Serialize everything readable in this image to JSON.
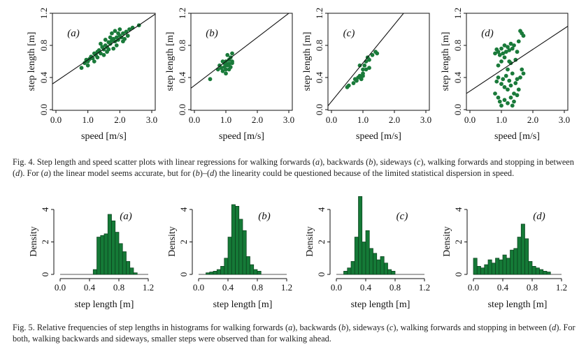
{
  "fig4": {
    "xlabel": "speed [m/s]",
    "ylabel": "step length [m]",
    "xticks": [
      "0.0",
      "1.0",
      "2.0",
      "3.0"
    ],
    "yticks": [
      "0.0",
      "0.4",
      "0.8",
      "1.2"
    ],
    "caption": "Fig. 4.  Step length and speed scatter plots with linear regressions for walking forwards (a), backwards (b), sideways (c), walking forwards and stopping in between (d). For (a) the linear model seems accurate, but for (b)–(d) the linearity could be questioned because of the limited statistical dispersion in speed."
  },
  "fig5": {
    "xlabel": "step length [m]",
    "ylabel": "Density",
    "xticks": [
      "0.0",
      "0.4",
      "0.8",
      "1.2"
    ],
    "yticks": [
      "0",
      "2",
      "4"
    ],
    "caption": "Fig. 5. Relative frequencies of step lengths in histograms for walking forwards (a), backwards (b), sideways (c), walking forwards and stopping in between (d). For both, walking backwards and sideways, smaller steps were observed than for walking ahead."
  },
  "colors": {
    "points": "#1a7a3a",
    "bars": "#157a37",
    "line": "#111111"
  },
  "chart_data": [
    {
      "type": "scatter",
      "panel": "(a)",
      "xlim": [
        0,
        3.0
      ],
      "ylim": [
        0,
        1.2
      ],
      "regression": {
        "intercept": 0.35,
        "slope": 0.27
      },
      "points": [
        [
          0.8,
          0.52
        ],
        [
          0.9,
          0.58
        ],
        [
          0.95,
          0.62
        ],
        [
          1.0,
          0.6
        ],
        [
          1.05,
          0.63
        ],
        [
          1.1,
          0.66
        ],
        [
          1.15,
          0.64
        ],
        [
          1.2,
          0.7
        ],
        [
          1.25,
          0.68
        ],
        [
          1.3,
          0.72
        ],
        [
          1.35,
          0.74
        ],
        [
          1.4,
          0.7
        ],
        [
          1.45,
          0.78
        ],
        [
          1.5,
          0.75
        ],
        [
          1.55,
          0.8
        ],
        [
          1.6,
          0.78
        ],
        [
          1.65,
          0.84
        ],
        [
          1.7,
          0.82
        ],
        [
          1.75,
          0.86
        ],
        [
          1.8,
          0.88
        ],
        [
          1.85,
          0.85
        ],
        [
          1.9,
          0.9
        ],
        [
          1.95,
          0.87
        ],
        [
          2.0,
          0.92
        ],
        [
          2.05,
          0.9
        ],
        [
          2.1,
          0.95
        ],
        [
          2.2,
          0.97
        ],
        [
          2.3,
          1.0
        ],
        [
          2.4,
          1.02
        ],
        [
          2.6,
          1.05
        ],
        [
          1.6,
          0.72
        ],
        [
          1.7,
          0.9
        ],
        [
          1.8,
          0.76
        ],
        [
          1.9,
          0.8
        ],
        [
          2.0,
          1.0
        ],
        [
          2.1,
          0.85
        ],
        [
          1.4,
          0.82
        ],
        [
          1.5,
          0.68
        ],
        [
          1.2,
          0.6
        ],
        [
          1.0,
          0.55
        ],
        [
          1.75,
          0.95
        ],
        [
          1.85,
          0.98
        ],
        [
          2.15,
          0.88
        ],
        [
          1.95,
          0.95
        ],
        [
          1.65,
          0.75
        ],
        [
          1.3,
          0.65
        ],
        [
          1.55,
          0.87
        ],
        [
          2.25,
          0.92
        ]
      ]
    },
    {
      "type": "scatter",
      "panel": "(b)",
      "xlim": [
        0,
        3.0
      ],
      "ylim": [
        0,
        1.2
      ],
      "regression": {
        "intercept": 0.3,
        "slope": 0.3
      },
      "points": [
        [
          0.5,
          0.38
        ],
        [
          0.75,
          0.5
        ],
        [
          0.8,
          0.55
        ],
        [
          0.85,
          0.52
        ],
        [
          0.9,
          0.48
        ],
        [
          0.95,
          0.58
        ],
        [
          1.0,
          0.6
        ],
        [
          1.0,
          0.5
        ],
        [
          1.05,
          0.55
        ],
        [
          1.1,
          0.62
        ],
        [
          1.1,
          0.57
        ],
        [
          1.15,
          0.65
        ],
        [
          1.15,
          0.53
        ],
        [
          1.2,
          0.6
        ],
        [
          1.2,
          0.7
        ],
        [
          1.0,
          0.45
        ],
        [
          0.9,
          0.6
        ],
        [
          1.05,
          0.68
        ],
        [
          1.1,
          0.5
        ],
        [
          1.2,
          0.58
        ],
        [
          0.95,
          0.53
        ],
        [
          1.0,
          0.57
        ]
      ]
    },
    {
      "type": "scatter",
      "panel": "(c)",
      "xlim": [
        0,
        3.0
      ],
      "ylim": [
        0,
        1.2
      ],
      "regression": {
        "intercept": 0.1,
        "slope": 0.48
      },
      "points": [
        [
          0.5,
          0.28
        ],
        [
          0.55,
          0.3
        ],
        [
          0.7,
          0.33
        ],
        [
          0.75,
          0.38
        ],
        [
          0.8,
          0.36
        ],
        [
          0.85,
          0.4
        ],
        [
          0.9,
          0.42
        ],
        [
          0.95,
          0.38
        ],
        [
          1.0,
          0.45
        ],
        [
          1.0,
          0.5
        ],
        [
          1.05,
          0.55
        ],
        [
          1.1,
          0.6
        ],
        [
          1.1,
          0.5
        ],
        [
          1.15,
          0.65
        ],
        [
          1.2,
          0.62
        ],
        [
          1.3,
          0.68
        ],
        [
          1.4,
          0.72
        ],
        [
          1.45,
          0.7
        ],
        [
          0.9,
          0.55
        ],
        [
          1.0,
          0.42
        ],
        [
          1.2,
          0.52
        ]
      ]
    },
    {
      "type": "scatter",
      "panel": "(d)",
      "xlim": [
        0,
        3.0
      ],
      "ylim": [
        0,
        1.2
      ],
      "regression": {
        "intercept": 0.23,
        "slope": 0.26
      },
      "points": [
        [
          0.8,
          0.7
        ],
        [
          0.85,
          0.75
        ],
        [
          0.9,
          0.72
        ],
        [
          0.95,
          0.68
        ],
        [
          1.0,
          0.76
        ],
        [
          1.05,
          0.7
        ],
        [
          1.1,
          0.8
        ],
        [
          1.15,
          0.72
        ],
        [
          1.2,
          0.78
        ],
        [
          1.25,
          0.74
        ],
        [
          1.3,
          0.82
        ],
        [
          1.35,
          0.76
        ],
        [
          1.4,
          0.8
        ],
        [
          1.5,
          0.72
        ],
        [
          1.6,
          0.98
        ],
        [
          1.65,
          0.95
        ],
        [
          1.7,
          0.92
        ],
        [
          1.55,
          0.85
        ],
        [
          0.9,
          0.55
        ],
        [
          1.0,
          0.6
        ],
        [
          1.2,
          0.5
        ],
        [
          0.85,
          0.35
        ],
        [
          0.9,
          0.4
        ],
        [
          1.0,
          0.32
        ],
        [
          1.05,
          0.38
        ],
        [
          1.1,
          0.28
        ],
        [
          1.15,
          0.42
        ],
        [
          1.2,
          0.25
        ],
        [
          1.25,
          0.36
        ],
        [
          1.3,
          0.3
        ],
        [
          1.35,
          0.45
        ],
        [
          1.4,
          0.2
        ],
        [
          1.45,
          0.33
        ],
        [
          1.5,
          0.38
        ],
        [
          1.55,
          0.25
        ],
        [
          1.6,
          0.4
        ],
        [
          1.65,
          0.5
        ],
        [
          1.7,
          0.45
        ],
        [
          0.95,
          0.1
        ],
        [
          1.0,
          0.05
        ],
        [
          1.1,
          0.12
        ],
        [
          1.2,
          0.08
        ],
        [
          1.3,
          0.15
        ],
        [
          1.4,
          0.1
        ],
        [
          1.5,
          0.18
        ],
        [
          1.35,
          0.05
        ],
        [
          1.25,
          0.6
        ],
        [
          0.8,
          0.2
        ],
        [
          0.9,
          0.15
        ],
        [
          1.1,
          0.65
        ],
        [
          1.3,
          0.58
        ],
        [
          1.45,
          0.62
        ]
      ]
    },
    {
      "type": "bar",
      "panel": "(a)",
      "xlim": [
        0,
        1.2
      ],
      "ylim": [
        0,
        4
      ],
      "bin_edges": [
        0.45,
        0.5,
        0.55,
        0.6,
        0.65,
        0.7,
        0.75,
        0.8,
        0.85,
        0.9,
        0.95,
        1.0,
        1.05
      ],
      "values": [
        0.3,
        2.3,
        2.4,
        2.5,
        3.7,
        3.3,
        2.6,
        1.9,
        1.4,
        0.8,
        0.4,
        0.1
      ]
    },
    {
      "type": "bar",
      "panel": "(b)",
      "xlim": [
        0,
        1.2
      ],
      "ylim": [
        0,
        4
      ],
      "bin_edges": [
        0.1,
        0.15,
        0.2,
        0.25,
        0.3,
        0.35,
        0.4,
        0.45,
        0.5,
        0.55,
        0.6,
        0.65,
        0.7,
        0.75,
        0.8,
        0.85
      ],
      "values": [
        0.1,
        0.15,
        0.2,
        0.3,
        0.5,
        1.0,
        2.3,
        4.3,
        4.2,
        3.4,
        2.7,
        1.1,
        0.6,
        0.3,
        0.2
      ]
    },
    {
      "type": "bar",
      "panel": "(c)",
      "xlim": [
        0,
        1.2
      ],
      "ylim": [
        0,
        4
      ],
      "bin_edges": [
        0.1,
        0.15,
        0.2,
        0.25,
        0.3,
        0.35,
        0.4,
        0.45,
        0.5,
        0.55,
        0.6,
        0.65,
        0.7,
        0.75,
        0.8
      ],
      "values": [
        0.2,
        0.4,
        0.8,
        2.3,
        4.8,
        2.0,
        2.7,
        1.6,
        1.3,
        0.9,
        1.1,
        0.7,
        0.3,
        0.2
      ]
    },
    {
      "type": "bar",
      "panel": "(d)",
      "xlim": [
        0,
        1.2
      ],
      "ylim": [
        0,
        4
      ],
      "bin_edges": [
        0.0,
        0.05,
        0.1,
        0.15,
        0.2,
        0.25,
        0.3,
        0.35,
        0.4,
        0.45,
        0.5,
        0.55,
        0.6,
        0.65,
        0.7,
        0.75,
        0.8,
        0.85,
        0.9,
        0.95,
        1.0,
        1.05
      ],
      "values": [
        1.0,
        0.5,
        0.4,
        0.6,
        0.9,
        0.7,
        1.0,
        0.9,
        1.2,
        1.0,
        1.5,
        1.6,
        2.3,
        3.1,
        2.2,
        0.8,
        0.5,
        0.4,
        0.3,
        0.2,
        0.15
      ]
    }
  ]
}
